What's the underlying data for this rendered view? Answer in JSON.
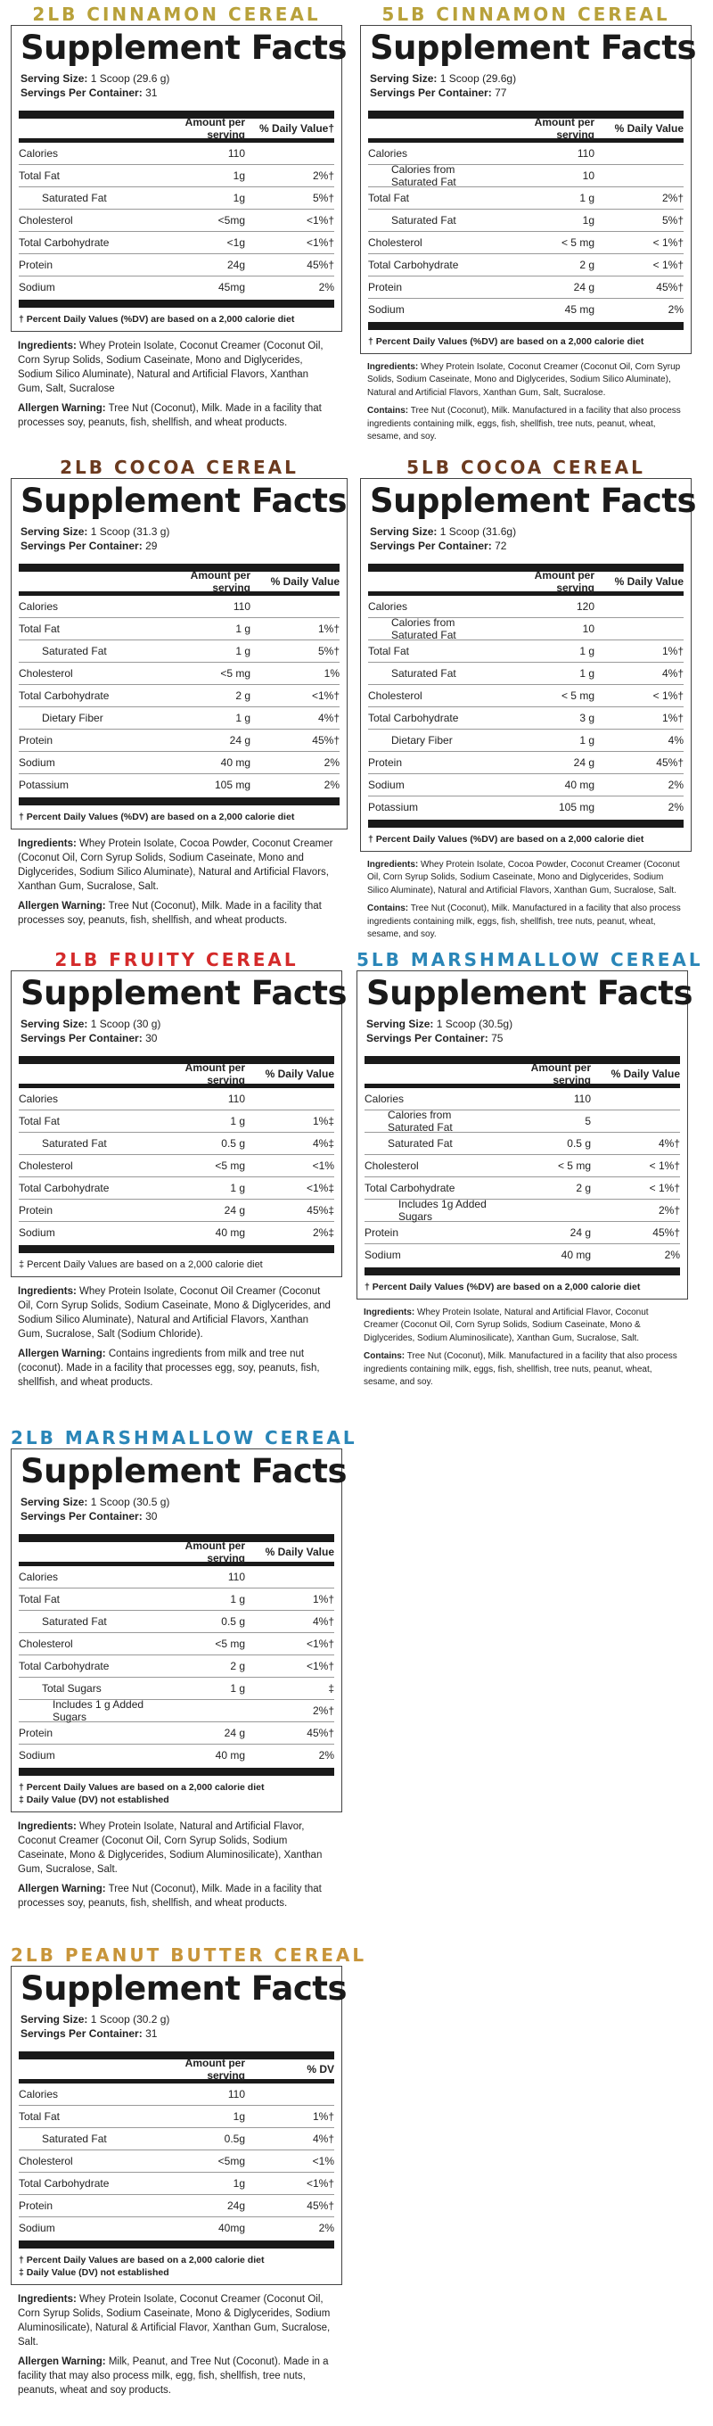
{
  "panels": [
    {
      "id": "p1",
      "title": "2LB CINNAMON CEREAL",
      "title_color": "#b8a13a",
      "heading": "Supplement Facts",
      "serving_size_label": "Serving Size:",
      "serving_size": "1 Scoop (29.6 g)",
      "servings_label": "Servings Per Container:",
      "servings": "31",
      "col_amount": "Amount per serving",
      "col_dv": "% Daily Value†",
      "rows": [
        {
          "name": "Calories",
          "amount": "110",
          "dv": ""
        },
        {
          "name": "Total Fat",
          "amount": "1g",
          "dv": "2%†"
        },
        {
          "name": "Saturated Fat",
          "amount": "1g",
          "dv": "5%†",
          "indent": 1
        },
        {
          "name": "Cholesterol",
          "amount": "<5mg",
          "dv": "<1%†"
        },
        {
          "name": "Total Carbohydrate",
          "amount": "<1g",
          "dv": "<1%†"
        },
        {
          "name": "Protein",
          "amount": "24g",
          "dv": "45%†"
        },
        {
          "name": "Sodium",
          "amount": "45mg",
          "dv": "2%"
        }
      ],
      "footnotes": [
        "† Percent Daily Values (%DV) are based on a 2,000 calorie diet"
      ],
      "ingredients_label": "Ingredients:",
      "ingredients": "Whey Protein Isolate, Coconut Creamer (Coconut Oil, Corn Syrup Solids, Sodium Caseinate, Mono and Diglycerides, Sodium Silico Aluminate), Natural and Artificial Flavors, Xanthan Gum, Salt, Sucralose",
      "allergen_label": "Allergen Warning:",
      "allergen": "Tree Nut (Coconut), Milk. Made in a facility that processes soy, peanuts, fish, shellfish, and wheat products."
    },
    {
      "id": "p2",
      "title": "5LB CINNAMON CEREAL",
      "title_color": "#b8a13a",
      "heading": "Supplement Facts",
      "serving_size_label": "Serving Size:",
      "serving_size": "1 Scoop (29.6g)",
      "servings_label": "Servings Per Container:",
      "servings": "77",
      "col_amount": "Amount per serving",
      "col_dv": "% Daily Value",
      "rows": [
        {
          "name": "Calories",
          "amount": "110",
          "dv": ""
        },
        {
          "name": "Calories from Saturated Fat",
          "amount": "10",
          "dv": "",
          "indent": 1
        },
        {
          "name": "Total Fat",
          "amount": "1 g",
          "dv": "2%†"
        },
        {
          "name": "Saturated Fat",
          "amount": "1g",
          "dv": "5%†",
          "indent": 1
        },
        {
          "name": "Cholesterol",
          "amount": "< 5 mg",
          "dv": "< 1%†"
        },
        {
          "name": "Total Carbohydrate",
          "amount": "2 g",
          "dv": "< 1%†"
        },
        {
          "name": "Protein",
          "amount": "24 g",
          "dv": "45%†"
        },
        {
          "name": "Sodium",
          "amount": "45 mg",
          "dv": "2%"
        }
      ],
      "footnotes": [
        "† Percent Daily Values (%DV) are based on a 2,000 calorie diet"
      ],
      "ingredients_label": "Ingredients:",
      "ingredients": "Whey Protein Isolate, Coconut Creamer (Coconut Oil, Corn Syrup Solids, Sodium Caseinate, Mono and Diglycerides, Sodium Silico Aluminate), Natural and Artificial Flavors, Xanthan Gum, Salt, Sucralose.",
      "allergen_label": "Contains:",
      "allergen": "Tree Nut (Coconut), Milk. Manufactured in a facility that also process ingredients containing milk, eggs, fish, shellfish, tree nuts, peanut, wheat, sesame, and soy."
    },
    {
      "id": "p3",
      "title": "2LB COCOA CEREAL",
      "title_color": "#6b3a1f",
      "heading": "Supplement Facts",
      "serving_size_label": "Serving Size:",
      "serving_size": "1 Scoop (31.3 g)",
      "servings_label": "Servings Per Container:",
      "servings": "29",
      "col_amount": "Amount per serving",
      "col_dv": "% Daily Value",
      "rows": [
        {
          "name": "Calories",
          "amount": "110",
          "dv": ""
        },
        {
          "name": "Total Fat",
          "amount": "1 g",
          "dv": "1%†"
        },
        {
          "name": "Saturated Fat",
          "amount": "1 g",
          "dv": "5%†",
          "indent": 1
        },
        {
          "name": "Cholesterol",
          "amount": "<5 mg",
          "dv": "1%"
        },
        {
          "name": "Total Carbohydrate",
          "amount": "2 g",
          "dv": "<1%†"
        },
        {
          "name": "Dietary Fiber",
          "amount": "1 g",
          "dv": "4%†",
          "indent": 1
        },
        {
          "name": "Protein",
          "amount": "24 g",
          "dv": "45%†"
        },
        {
          "name": "Sodium",
          "amount": "40 mg",
          "dv": "2%"
        },
        {
          "name": "Potassium",
          "amount": "105 mg",
          "dv": "2%"
        }
      ],
      "footnotes": [
        "† Percent Daily Values (%DV) are based on a 2,000 calorie diet"
      ],
      "ingredients_label": "Ingredients:",
      "ingredients": "Whey Protein Isolate, Cocoa Powder, Coconut Creamer (Coconut Oil, Corn Syrup Solids, Sodium Caseinate, Mono and Diglycerides, Sodium Silico Aluminate), Natural and Artificial Flavors, Xanthan Gum, Sucralose, Salt.",
      "allergen_label": "Allergen Warning:",
      "allergen": "Tree Nut (Coconut), Milk. Made in a facility that processes soy, peanuts, fish, shellfish, and wheat products."
    },
    {
      "id": "p4",
      "title": "5LB COCOA CEREAL",
      "title_color": "#6b3a1f",
      "heading": "Supplement Facts",
      "serving_size_label": "Serving Size:",
      "serving_size": "1 Scoop (31.6g)",
      "servings_label": "Servings Per Container:",
      "servings": "72",
      "col_amount": "Amount per serving",
      "col_dv": "% Daily Value",
      "rows": [
        {
          "name": "Calories",
          "amount": "120",
          "dv": ""
        },
        {
          "name": "Calories from Saturated Fat",
          "amount": "10",
          "dv": "",
          "indent": 1
        },
        {
          "name": "Total Fat",
          "amount": "1 g",
          "dv": "1%†"
        },
        {
          "name": "Saturated Fat",
          "amount": "1 g",
          "dv": "4%†",
          "indent": 1
        },
        {
          "name": "Cholesterol",
          "amount": "< 5 mg",
          "dv": "< 1%†"
        },
        {
          "name": "Total Carbohydrate",
          "amount": "3 g",
          "dv": "1%†"
        },
        {
          "name": "Dietary Fiber",
          "amount": "1 g",
          "dv": "4%",
          "indent": 1
        },
        {
          "name": "Protein",
          "amount": "24 g",
          "dv": "45%†"
        },
        {
          "name": "Sodium",
          "amount": "40 mg",
          "dv": "2%"
        },
        {
          "name": "Potassium",
          "amount": "105 mg",
          "dv": "2%"
        }
      ],
      "footnotes": [
        "† Percent Daily Values (%DV) are based on a 2,000 calorie diet"
      ],
      "ingredients_label": "Ingredients:",
      "ingredients": "Whey Protein Isolate, Cocoa Powder, Coconut Creamer (Coconut Oil, Corn Syrup Solids, Sodium Caseinate, Mono and Diglycerides, Sodium Silico Aluminate), Natural and Artificial Flavors, Xanthan Gum, Sucralose, Salt.",
      "allergen_label": "Contains:",
      "allergen": "Tree Nut (Coconut), Milk. Manufactured in a facility that also process ingredients containing milk, eggs, fish, shellfish, tree nuts, peanut, wheat, sesame, and soy."
    },
    {
      "id": "p5",
      "title": "2LB FRUITY CEREAL",
      "title_color": "#d42a2a",
      "heading": "Supplement Facts",
      "serving_size_label": "Serving Size:",
      "serving_size": "1 Scoop (30 g)",
      "servings_label": "Servings Per Container:",
      "servings": "30",
      "col_amount": "Amount per serving",
      "col_dv": "% Daily Value",
      "rows": [
        {
          "name": "Calories",
          "amount": "110",
          "dv": ""
        },
        {
          "name": "Total Fat",
          "amount": "1 g",
          "dv": "1%‡"
        },
        {
          "name": "Saturated Fat",
          "amount": "0.5 g",
          "dv": "4%‡",
          "indent": 1
        },
        {
          "name": "Cholesterol",
          "amount": "<5 mg",
          "dv": "<1%"
        },
        {
          "name": "Total Carbohydrate",
          "amount": "1 g",
          "dv": "<1%‡"
        },
        {
          "name": "Protein",
          "amount": "24 g",
          "dv": "45%‡"
        },
        {
          "name": "Sodium",
          "amount": "40 mg",
          "dv": "2%‡"
        }
      ],
      "footnotes": [
        "‡ Percent Daily Values are based on a 2,000 calorie diet"
      ],
      "ingredients_label": "Ingredients:",
      "ingredients": "Whey Protein Isolate, Coconut Oil Creamer (Coconut Oil, Corn Syrup Solids, Sodium Caseinate, Mono & Diglycerides, and Sodium Silico Aluminate), Natural and Artificial Flavors, Xanthan Gum, Sucralose, Salt (Sodium Chloride).",
      "allergen_label": "Allergen Warning:",
      "allergen": "Contains ingredients from milk and tree nut (coconut). Made in a facility that processes egg, soy, peanuts, fish, shellfish, and wheat products."
    },
    {
      "id": "p6",
      "title": "5LB MARSHMALLOW CEREAL",
      "title_color": "#2a86b8",
      "heading": "Supplement Facts",
      "serving_size_label": "Serving Size:",
      "serving_size": "1 Scoop (30.5g)",
      "servings_label": "Servings Per Container:",
      "servings": "75",
      "col_amount": "Amount per serving",
      "col_dv": "% Daily Value",
      "rows": [
        {
          "name": "Calories",
          "amount": "110",
          "dv": ""
        },
        {
          "name": "Calories from Saturated Fat",
          "amount": "5",
          "dv": "",
          "indent": 1
        },
        {
          "name": "Saturated Fat",
          "amount": "0.5 g",
          "dv": "4%†",
          "indent": 1
        },
        {
          "name": "Cholesterol",
          "amount": "< 5 mg",
          "dv": "< 1%†"
        },
        {
          "name": "Total Carbohydrate",
          "amount": "2 g",
          "dv": "< 1%†"
        },
        {
          "name": "Includes 1g Added Sugars",
          "amount": "",
          "dv": "2%†",
          "indent": 2
        },
        {
          "name": "Protein",
          "amount": "24 g",
          "dv": "45%†"
        },
        {
          "name": "Sodium",
          "amount": "40 mg",
          "dv": "2%"
        }
      ],
      "footnotes": [
        "† Percent Daily Values (%DV) are based on a 2,000 calorie diet"
      ],
      "ingredients_label": "Ingredients:",
      "ingredients": "Whey Protein Isolate, Natural and Artificial Flavor, Coconut Creamer (Coconut Oil, Corn Syrup Solids, Sodium Caseinate, Mono & Diglycerides, Sodium Aluminosilicate), Xanthan Gum, Sucralose, Salt.",
      "allergen_label": "Contains:",
      "allergen": "Tree Nut (Coconut), Milk. Manufactured in a facility that also process ingredients containing milk, eggs, fish, shellfish, tree nuts, peanut, wheat, sesame, and soy."
    },
    {
      "id": "p7",
      "title": "2LB MARSHMALLOW CEREAL",
      "title_color": "#2a86b8",
      "heading": "Supplement Facts",
      "serving_size_label": "Serving Size:",
      "serving_size": "1 Scoop (30.5 g)",
      "servings_label": "Servings Per Container:",
      "servings": "30",
      "col_amount": "Amount per serving",
      "col_dv": "% Daily Value",
      "rows": [
        {
          "name": "Calories",
          "amount": "110",
          "dv": ""
        },
        {
          "name": "Total Fat",
          "amount": "1 g",
          "dv": "1%†"
        },
        {
          "name": "Saturated Fat",
          "amount": "0.5 g",
          "dv": "4%†",
          "indent": 1
        },
        {
          "name": "Cholesterol",
          "amount": "<5 mg",
          "dv": "<1%†"
        },
        {
          "name": "Total Carbohydrate",
          "amount": "2 g",
          "dv": "<1%†"
        },
        {
          "name": "Total Sugars",
          "amount": "1 g",
          "dv": "‡",
          "indent": 1
        },
        {
          "name": "Includes 1 g Added Sugars",
          "amount": "",
          "dv": "2%†",
          "indent": 2
        },
        {
          "name": "Protein",
          "amount": "24 g",
          "dv": "45%†"
        },
        {
          "name": "Sodium",
          "amount": "40 mg",
          "dv": "2%"
        }
      ],
      "footnotes": [
        "† Percent Daily Values are based on a 2,000 calorie diet",
        "‡ Daily Value (DV) not established"
      ],
      "ingredients_label": "Ingredients:",
      "ingredients": "Whey Protein Isolate, Natural and Artificial Flavor, Coconut Creamer (Coconut Oil, Corn Syrup Solids, Sodium Caseinate, Mono & Diglycerides, Sodium Aluminosilicate), Xanthan Gum, Sucralose, Salt.",
      "allergen_label": "Allergen Warning:",
      "allergen": "Tree Nut (Coconut), Milk. Made in a facility that processes soy, peanuts, fish, shellfish, and wheat products."
    },
    {
      "id": "p8",
      "title": "2LB PEANUT BUTTER CEREAL",
      "title_color": "#c8953a",
      "heading": "Supplement Facts",
      "serving_size_label": "Serving Size:",
      "serving_size": "1 Scoop (30.2 g)",
      "servings_label": "Servings Per Container:",
      "servings": "31",
      "col_amount": "Amount per serving",
      "col_dv": "% DV",
      "rows": [
        {
          "name": "Calories",
          "amount": "110",
          "dv": ""
        },
        {
          "name": "Total Fat",
          "amount": "1g",
          "dv": "1%†"
        },
        {
          "name": "Saturated Fat",
          "amount": "0.5g",
          "dv": "4%†",
          "indent": 1
        },
        {
          "name": "Cholesterol",
          "amount": "<5mg",
          "dv": "<1%"
        },
        {
          "name": "Total Carbohydrate",
          "amount": "1g",
          "dv": "<1%†"
        },
        {
          "name": "Protein",
          "amount": "24g",
          "dv": "45%†"
        },
        {
          "name": "Sodium",
          "amount": "40mg",
          "dv": "2%"
        }
      ],
      "footnotes": [
        "† Percent Daily Values are based on a 2,000 calorie diet",
        "‡ Daily Value (DV) not established"
      ],
      "ingredients_label": "Ingredients:",
      "ingredients": "Whey Protein Isolate, Coconut Creamer (Coconut Oil, Corn Syrup Solids, Sodium Caseinate, Mono & Diglycerides, Sodium Aluminosilicate), Natural & Artificial Flavor, Xanthan Gum, Sucralose, Salt.",
      "allergen_label": "Allergen Warning:",
      "allergen": "Milk, Peanut, and Tree Nut (Coconut). Made in a facility that may also process milk, egg, fish, shellfish, tree nuts, peanuts, wheat and soy products."
    }
  ]
}
